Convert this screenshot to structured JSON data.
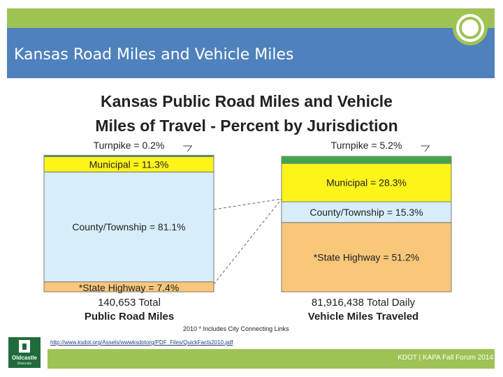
{
  "slide": {
    "title": "Kansas Road Miles and Vehicle Miles",
    "footer": "KDOT | KAPA Fall Forum 2014",
    "source_url": "http://www.ksdot.org/Assets/wwwksdotorg/PDF_Files/QuickFacts2010.pdf",
    "logo_text": "Oldcastle",
    "logo_subtext": "Materials"
  },
  "colors": {
    "band": "#9fc255",
    "title_bar": "#4f81bd",
    "turnpike": "#3fa84a",
    "municipal": "#fdf41a",
    "county": "#d7eefa",
    "state": "#f8c77a"
  },
  "chart_data": {
    "type": "stacked-bar",
    "title_line1": "Kansas Public Road Miles and Vehicle",
    "title_line2": "Miles of Travel - Percent by Jurisdiction",
    "footnote": "2010 * Includes City Connecting Links",
    "series_order": [
      "State Highway",
      "County/Township",
      "Municipal",
      "Turnpike"
    ],
    "bars": [
      {
        "name": "Public Road Miles",
        "total_line": "140,653 Total",
        "caption": "Public Road Miles",
        "segments": [
          {
            "name": "State Highway",
            "value": 7.4,
            "label": "*State Highway = 7.4%",
            "color": "#f8c77a"
          },
          {
            "name": "County/Township",
            "value": 81.1,
            "label": "County/Township = 81.1%",
            "color": "#d7eefa"
          },
          {
            "name": "Municipal",
            "value": 11.3,
            "label": "Municipal = 11.3%",
            "color": "#fdf41a"
          },
          {
            "name": "Turnpike",
            "value": 0.2,
            "label": "Turnpike = 0.2%",
            "color": "#3fa84a"
          }
        ]
      },
      {
        "name": "Vehicle Miles Traveled",
        "total_line": "81,916,438 Total Daily",
        "caption": "Vehicle Miles Traveled",
        "segments": [
          {
            "name": "State Highway",
            "value": 51.2,
            "label": "*State Highway = 51.2%",
            "color": "#f8c77a"
          },
          {
            "name": "County/Township",
            "value": 15.3,
            "label": "County/Township = 15.3%",
            "color": "#d7eefa"
          },
          {
            "name": "Municipal",
            "value": 28.3,
            "label": "Municipal = 28.3%",
            "color": "#fdf41a"
          },
          {
            "name": "Turnpike",
            "value": 5.2,
            "label": "Turnpike = 5.2%",
            "color": "#3fa84a"
          }
        ]
      }
    ]
  }
}
